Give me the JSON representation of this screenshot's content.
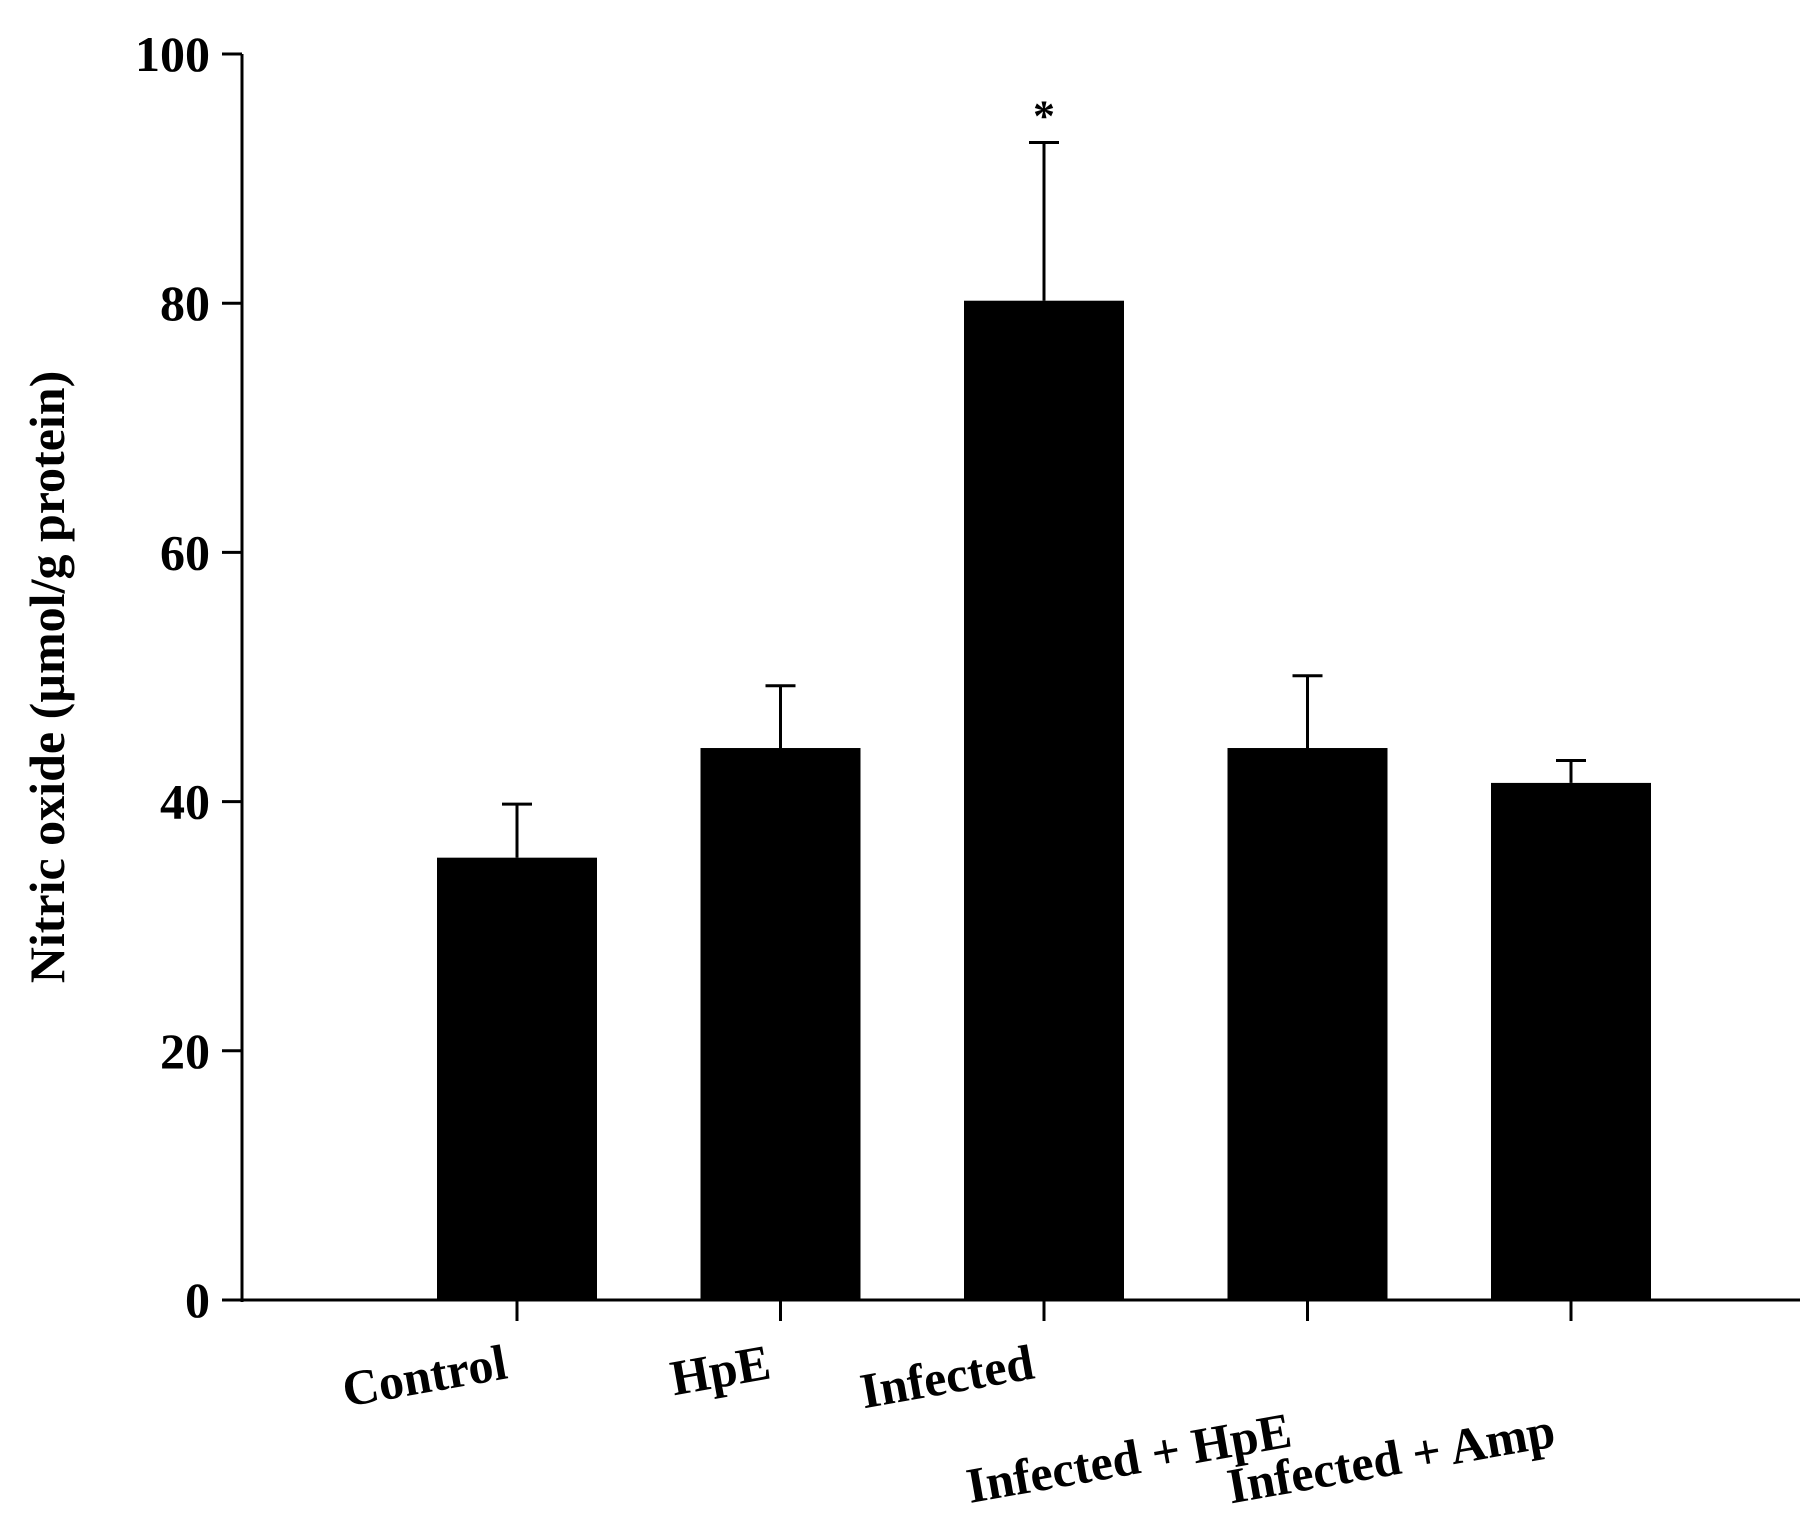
{
  "chart_data": {
    "type": "bar",
    "title": "",
    "xlabel": "",
    "ylabel": "Nitric oxide (µmol/g protein)",
    "ylim": [
      0,
      100
    ],
    "yticks": [
      0,
      20,
      40,
      60,
      80,
      100
    ],
    "categories": [
      "Control",
      "HpE",
      "Infected",
      "Infected + HpE",
      "Infected + Amp"
    ],
    "values": [
      35.5,
      44.3,
      80.2,
      44.3,
      41.5
    ],
    "errors": [
      4.3,
      5.0,
      12.7,
      5.8,
      1.8
    ],
    "annotations": [
      "",
      "",
      "*",
      "",
      ""
    ],
    "bar_color": "#000000",
    "axis_color": "#000000",
    "grid": false
  }
}
